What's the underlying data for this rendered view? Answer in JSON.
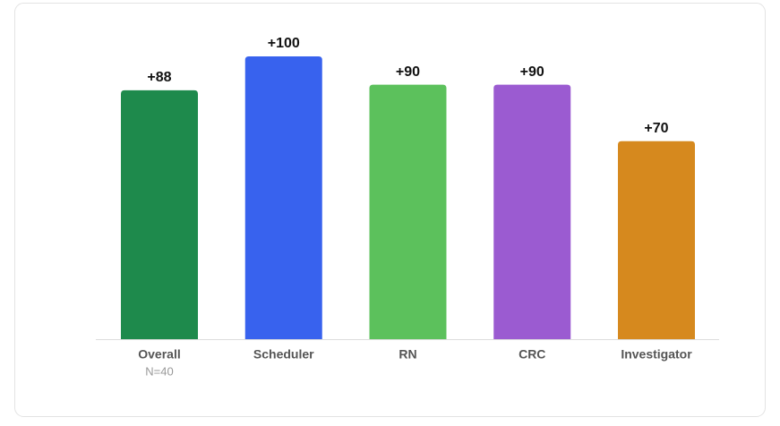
{
  "chart_data": {
    "type": "bar",
    "categories": [
      "Overall",
      "Scheduler",
      "RN",
      "CRC",
      "Investigator"
    ],
    "category_sublabels": [
      "N=40",
      null,
      null,
      null,
      null
    ],
    "values": [
      88,
      100,
      90,
      90,
      70
    ],
    "value_labels": [
      "+88",
      "+100",
      "+90",
      "+90",
      "+70"
    ],
    "colors": [
      "#1e8a4c",
      "#3862ee",
      "#5cc15c",
      "#9b5bd1",
      "#d6891e"
    ],
    "ylim": [
      0,
      100
    ]
  }
}
